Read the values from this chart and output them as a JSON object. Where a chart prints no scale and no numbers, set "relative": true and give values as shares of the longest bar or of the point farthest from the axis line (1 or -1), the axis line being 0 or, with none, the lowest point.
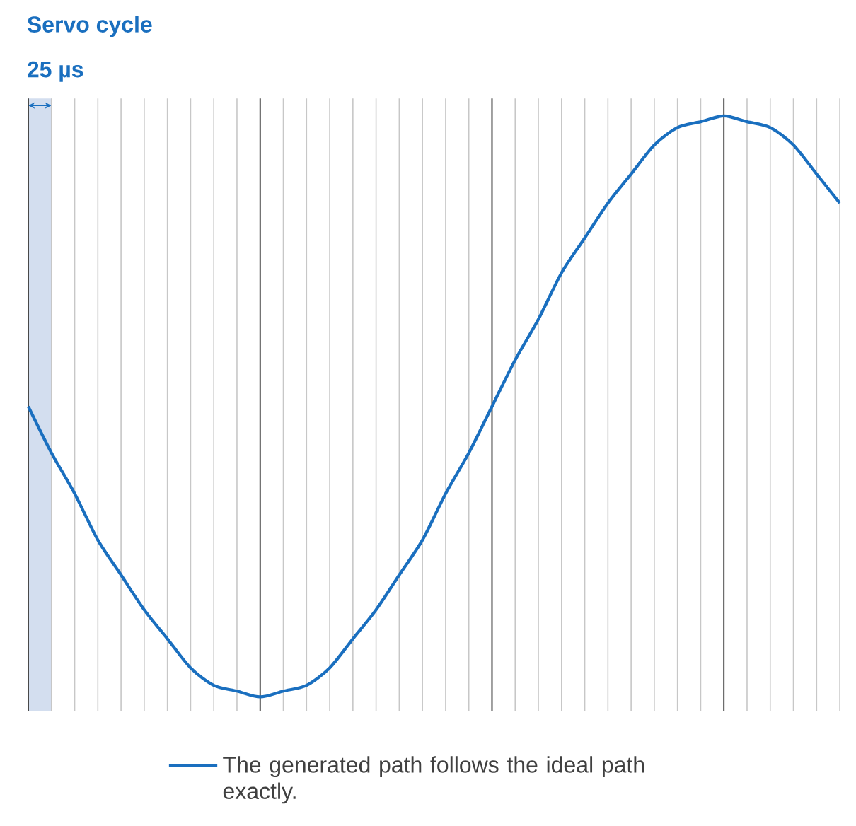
{
  "chart_data": {
    "type": "line",
    "title": "Servo cycle",
    "subtitle": "25 µs",
    "relative": true,
    "categories": [
      null,
      null,
      null,
      null,
      null,
      null,
      null,
      null,
      null,
      null,
      null,
      null,
      null,
      null,
      null,
      null,
      null,
      null,
      null,
      null,
      null,
      null,
      null,
      null,
      null,
      null,
      null,
      null,
      null,
      null,
      null,
      null,
      null,
      null,
      null,
      null
    ],
    "series": [
      {
        "name": "The generated path follows the ideal path exactly.",
        "color": "#1a6fbf",
        "values": [
          0.5,
          0.42,
          0.35,
          0.27,
          0.21,
          0.15,
          0.1,
          0.05,
          0.02,
          0.01,
          0,
          0.01,
          0.02,
          0.05,
          0.1,
          0.15,
          0.21,
          0.27,
          0.35,
          0.42,
          0.5,
          0.58,
          0.65,
          0.73,
          0.79,
          0.85,
          0.9,
          0.95,
          0.98,
          0.99,
          1,
          0.99,
          0.98,
          0.95,
          0.9,
          0.85
        ]
      }
    ],
    "grid": "x",
    "legend": "bottom",
    "marker": "none",
    "line_style": "solid"
  }
}
